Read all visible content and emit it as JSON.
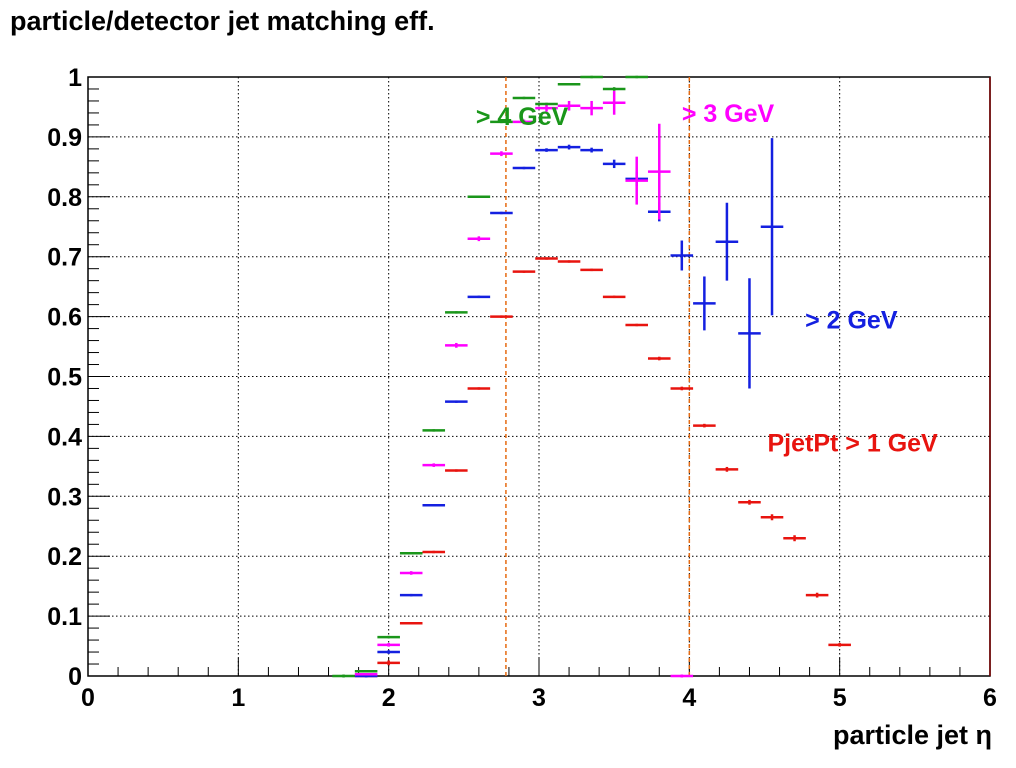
{
  "title": "particle/detector jet matching eff.",
  "chart_data": {
    "type": "scatter",
    "title": "particle/detector jet matching eff.",
    "xlabel": "particle jet η",
    "ylabel": "",
    "xlim": [
      0,
      6
    ],
    "ylim": [
      0,
      1
    ],
    "x_ticks": [
      "0",
      "1",
      "2",
      "3",
      "4",
      "5",
      "6"
    ],
    "y_ticks": [
      "0",
      "0.1",
      "0.2",
      "0.3",
      "0.4",
      "0.5",
      "0.6",
      "0.7",
      "0.8",
      "0.9",
      "1"
    ],
    "grid": true,
    "reference_lines_x": [
      2.78,
      4.0
    ],
    "series": [
      {
        "name": "PjetPt > 1 GeV",
        "color": "#e8140f",
        "bin_half_width": 0.075,
        "x": [
          1.85,
          2.0,
          2.15,
          2.3,
          2.45,
          2.6,
          2.75,
          2.9,
          3.05,
          3.2,
          3.35,
          3.5,
          3.65,
          3.8,
          3.95,
          4.1,
          4.25,
          4.4,
          4.55,
          4.7,
          4.85,
          5.0
        ],
        "y": [
          0.0,
          0.022,
          0.088,
          0.207,
          0.343,
          0.48,
          0.6,
          0.675,
          0.697,
          0.692,
          0.678,
          0.633,
          0.586,
          0.53,
          0.48,
          0.418,
          0.345,
          0.29,
          0.265,
          0.23,
          0.135,
          0.052
        ],
        "yerr": [
          0.0,
          0.004,
          0.002,
          0.002,
          0.002,
          0.002,
          0.002,
          0.002,
          0.002,
          0.002,
          0.002,
          0.002,
          0.002,
          0.003,
          0.003,
          0.003,
          0.004,
          0.004,
          0.005,
          0.005,
          0.004,
          0.003
        ]
      },
      {
        "name": "> 2 GeV",
        "color": "#1420e0",
        "bin_half_width": 0.075,
        "x": [
          1.85,
          2.0,
          2.15,
          2.3,
          2.45,
          2.6,
          2.75,
          2.9,
          3.05,
          3.2,
          3.35,
          3.5,
          3.65,
          3.8,
          3.95,
          4.1,
          4.25,
          4.4,
          4.55
        ],
        "y": [
          0.0,
          0.04,
          0.135,
          0.285,
          0.458,
          0.633,
          0.773,
          0.848,
          0.878,
          0.883,
          0.878,
          0.855,
          0.83,
          0.775,
          0.702,
          0.622,
          0.725,
          0.572,
          0.75
        ],
        "yerr": [
          0.0,
          0.003,
          0.002,
          0.002,
          0.002,
          0.002,
          0.002,
          0.002,
          0.003,
          0.004,
          0.004,
          0.007,
          0.012,
          0.016,
          0.025,
          0.045,
          0.065,
          0.092,
          0.148
        ]
      },
      {
        "name": "> 3 GeV",
        "color": "#ff00ff",
        "bin_half_width": 0.075,
        "x": [
          1.85,
          2.0,
          2.15,
          2.3,
          2.45,
          2.6,
          2.75,
          2.9,
          3.05,
          3.2,
          3.35,
          3.5,
          3.65,
          3.8,
          3.95
        ],
        "y": [
          0.003,
          0.052,
          0.172,
          0.352,
          0.552,
          0.73,
          0.872,
          0.925,
          0.948,
          0.952,
          0.948,
          0.957,
          0.827,
          0.842,
          0.0
        ],
        "yerr": [
          0.002,
          0.003,
          0.003,
          0.003,
          0.004,
          0.004,
          0.004,
          0.004,
          0.006,
          0.008,
          0.012,
          0.02,
          0.04,
          0.08,
          0.0
        ]
      },
      {
        "name": "> 4 GeV",
        "color": "#1a961a",
        "bin_half_width": 0.075,
        "x": [
          1.7,
          1.85,
          2.0,
          2.15,
          2.3,
          2.45,
          2.6,
          2.75,
          2.9,
          3.05,
          3.2,
          3.35,
          3.5,
          3.65
        ],
        "y": [
          0.0,
          0.008,
          0.065,
          0.205,
          0.41,
          0.607,
          0.8,
          0.925,
          0.965,
          0.955,
          0.988,
          1.0,
          0.98,
          1.0
        ],
        "yerr": [
          0.0,
          0.002,
          0.002,
          0.002,
          0.002,
          0.002,
          0.002,
          0.002,
          0.002,
          0.002,
          0.002,
          0.002,
          0.003,
          0.002
        ]
      }
    ],
    "annotations": [
      {
        "text": "> 4 GeV",
        "color": "#1a961a",
        "x": 2.58,
        "y": 0.92
      },
      {
        "text": "> 3 GeV",
        "color": "#ff00ff",
        "x": 3.95,
        "y": 0.925
      },
      {
        "text": "> 2 GeV",
        "color": "#1420e0",
        "x": 4.77,
        "y": 0.58
      },
      {
        "text": "PjetPt > 1 GeV",
        "color": "#e8140f",
        "x": 4.52,
        "y": 0.375
      }
    ]
  }
}
